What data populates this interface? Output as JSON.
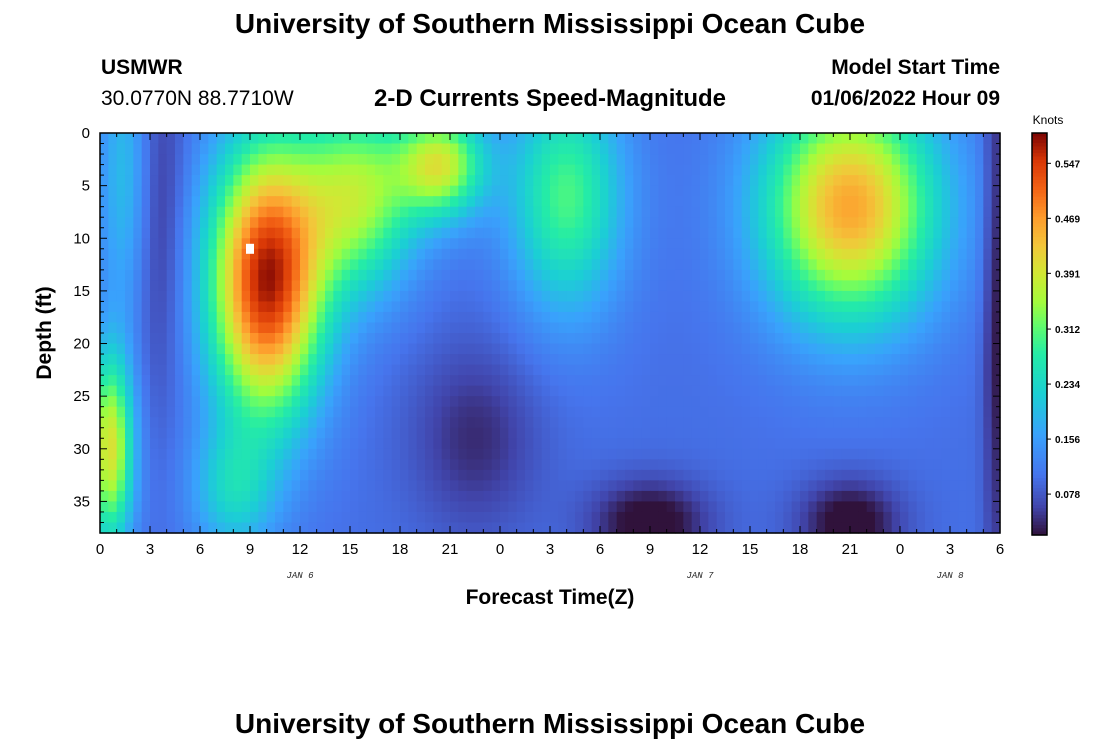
{
  "header": {
    "title": "University of Southern Mississippi Ocean Cube",
    "station": "USMWR",
    "coords": "30.0770N  88.7710W",
    "subtitle": "2-D Currents Speed-Magnitude",
    "model_start_label": "Model Start Time",
    "model_start_value": "01/06/2022 Hour 09"
  },
  "footer": {
    "title": "University of Southern Mississippi Ocean Cube"
  },
  "chart_data": {
    "type": "heatmap",
    "title": "2-D Currents Speed-Magnitude",
    "xlabel": "Forecast Time(Z)",
    "ylabel": "Depth (ft)",
    "x_range_hours": [
      0,
      54
    ],
    "y_range_ft": [
      0,
      38
    ],
    "y_inverted": true,
    "x_ticks": [
      {
        "h": 0,
        "label": "0"
      },
      {
        "h": 3,
        "label": "3"
      },
      {
        "h": 6,
        "label": "6"
      },
      {
        "h": 9,
        "label": "9"
      },
      {
        "h": 12,
        "label": "12"
      },
      {
        "h": 15,
        "label": "15"
      },
      {
        "h": 18,
        "label": "18"
      },
      {
        "h": 21,
        "label": "21"
      },
      {
        "h": 24,
        "label": "0"
      },
      {
        "h": 27,
        "label": "3"
      },
      {
        "h": 30,
        "label": "6"
      },
      {
        "h": 33,
        "label": "9"
      },
      {
        "h": 36,
        "label": "12"
      },
      {
        "h": 39,
        "label": "15"
      },
      {
        "h": 42,
        "label": "18"
      },
      {
        "h": 45,
        "label": "21"
      },
      {
        "h": 48,
        "label": "0"
      },
      {
        "h": 51,
        "label": "3"
      },
      {
        "h": 54,
        "label": "6"
      }
    ],
    "date_labels": [
      {
        "h": 12,
        "label": "JAN 6"
      },
      {
        "h": 36,
        "label": "JAN 7"
      },
      {
        "h": 51,
        "label": "JAN 8"
      }
    ],
    "y_ticks": [
      0,
      5,
      10,
      15,
      20,
      25,
      30,
      35
    ],
    "colorbar": {
      "unit": "Knots",
      "min": 0.02,
      "max": 0.59,
      "ticks": [
        0.078,
        0.156,
        0.234,
        0.312,
        0.391,
        0.469,
        0.547
      ],
      "tick_labels": [
        "0.078",
        "0.156",
        "0.234",
        "0.312",
        "0.391",
        "0.469",
        "0.547"
      ]
    },
    "field_features": [
      {
        "name": "jan6-morning-jet",
        "hour": 9.5,
        "depth_ft": 15,
        "speed_knots": 0.58
      },
      {
        "name": "jan6-evening-upper",
        "hour": 20,
        "depth_ft": 3,
        "speed_knots": 0.38
      },
      {
        "name": "jan7-midday-upper",
        "hour": 28,
        "depth_ft": 5,
        "speed_knots": 0.3
      },
      {
        "name": "jan7-evening-jet",
        "hour": 45,
        "depth_ft": 8,
        "speed_knots": 0.46
      },
      {
        "name": "jan7-morning-low",
        "hour": 33,
        "depth_ft": 37,
        "speed_knots": 0.02
      },
      {
        "name": "jan7-night-low",
        "hour": 45,
        "depth_ft": 37,
        "speed_knots": 0.02
      }
    ],
    "marker": {
      "hour": 9,
      "depth_ft": 11,
      "label": "current-time"
    }
  }
}
